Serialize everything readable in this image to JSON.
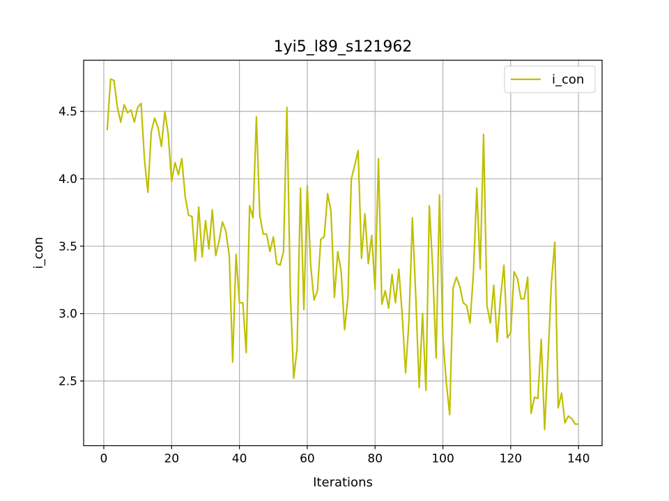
{
  "chart_data": {
    "type": "line",
    "title": "1yi5_l89_s121962",
    "xlabel": "Iterations",
    "ylabel": "i_con",
    "xlim": [
      -5.95,
      146.95
    ],
    "ylim": [
      2.02,
      4.88
    ],
    "grid": true,
    "legend_position": "top-right",
    "x_ticks": [
      0,
      20,
      40,
      60,
      80,
      100,
      120,
      140
    ],
    "x_tick_labels": [
      "0",
      "20",
      "40",
      "60",
      "80",
      "100",
      "120",
      "140"
    ],
    "y_ticks": [
      2.5,
      3.0,
      3.5,
      4.0,
      4.5
    ],
    "y_tick_labels": [
      "2.5",
      "3.0",
      "3.5",
      "4.0",
      "4.5"
    ],
    "series": [
      {
        "name": "i_con",
        "color": "#bfbf00",
        "x": [
          1,
          2,
          3,
          4,
          5,
          6,
          7,
          8,
          9,
          10,
          11,
          12,
          13,
          14,
          15,
          16,
          17,
          18,
          19,
          20,
          21,
          22,
          23,
          24,
          25,
          26,
          27,
          28,
          29,
          30,
          31,
          32,
          33,
          34,
          35,
          36,
          37,
          38,
          39,
          40,
          41,
          42,
          43,
          44,
          45,
          46,
          47,
          48,
          49,
          50,
          51,
          52,
          53,
          54,
          55,
          56,
          57,
          58,
          59,
          60,
          61,
          62,
          63,
          64,
          65,
          66,
          67,
          68,
          69,
          70,
          71,
          72,
          73,
          74,
          75,
          76,
          77,
          78,
          79,
          80,
          81,
          82,
          83,
          84,
          85,
          86,
          87,
          88,
          89,
          90,
          91,
          92,
          93,
          94,
          95,
          96,
          97,
          98,
          99,
          100,
          101,
          102,
          103,
          104,
          105,
          106,
          107,
          108,
          109,
          110,
          111,
          112,
          113,
          114,
          115,
          116,
          117,
          118,
          119,
          120,
          121,
          122,
          123,
          124,
          125,
          126,
          127,
          128,
          129,
          130,
          131,
          132,
          133,
          134,
          135,
          136,
          137,
          138,
          139,
          140
        ],
        "values": [
          4.36,
          4.74,
          4.73,
          4.53,
          4.42,
          4.55,
          4.49,
          4.51,
          4.42,
          4.53,
          4.56,
          4.14,
          3.9,
          4.35,
          4.45,
          4.38,
          4.24,
          4.5,
          4.33,
          3.98,
          4.12,
          4.03,
          4.15,
          3.87,
          3.73,
          3.72,
          3.39,
          3.79,
          3.42,
          3.69,
          3.48,
          3.77,
          3.43,
          3.54,
          3.68,
          3.61,
          3.43,
          2.64,
          3.44,
          3.08,
          3.08,
          2.71,
          3.8,
          3.71,
          4.46,
          3.73,
          3.59,
          3.59,
          3.46,
          3.57,
          3.37,
          3.36,
          3.46,
          4.53,
          3.16,
          2.52,
          2.74,
          3.93,
          3.03,
          3.95,
          3.36,
          3.1,
          3.17,
          3.55,
          3.57,
          3.89,
          3.76,
          3.12,
          3.46,
          3.31,
          2.88,
          3.12,
          4.0,
          4.1,
          4.21,
          3.41,
          3.74,
          3.37,
          3.58,
          3.18,
          4.15,
          3.07,
          3.17,
          3.04,
          3.29,
          3.08,
          3.33,
          2.99,
          2.56,
          2.95,
          3.71,
          3.13,
          2.45,
          3.0,
          2.43,
          3.8,
          3.33,
          2.67,
          3.88,
          2.83,
          2.49,
          2.25,
          3.19,
          3.27,
          3.2,
          3.08,
          3.06,
          2.93,
          3.3,
          3.93,
          3.33,
          4.33,
          3.06,
          2.93,
          3.21,
          2.79,
          3.12,
          3.36,
          2.82,
          2.86,
          3.31,
          3.26,
          3.11,
          3.11,
          3.27,
          2.26,
          2.38,
          2.37,
          2.81,
          2.14,
          2.67,
          3.23,
          3.53,
          2.3,
          2.41,
          2.19,
          2.24,
          2.22,
          2.18,
          2.18
        ]
      }
    ]
  }
}
